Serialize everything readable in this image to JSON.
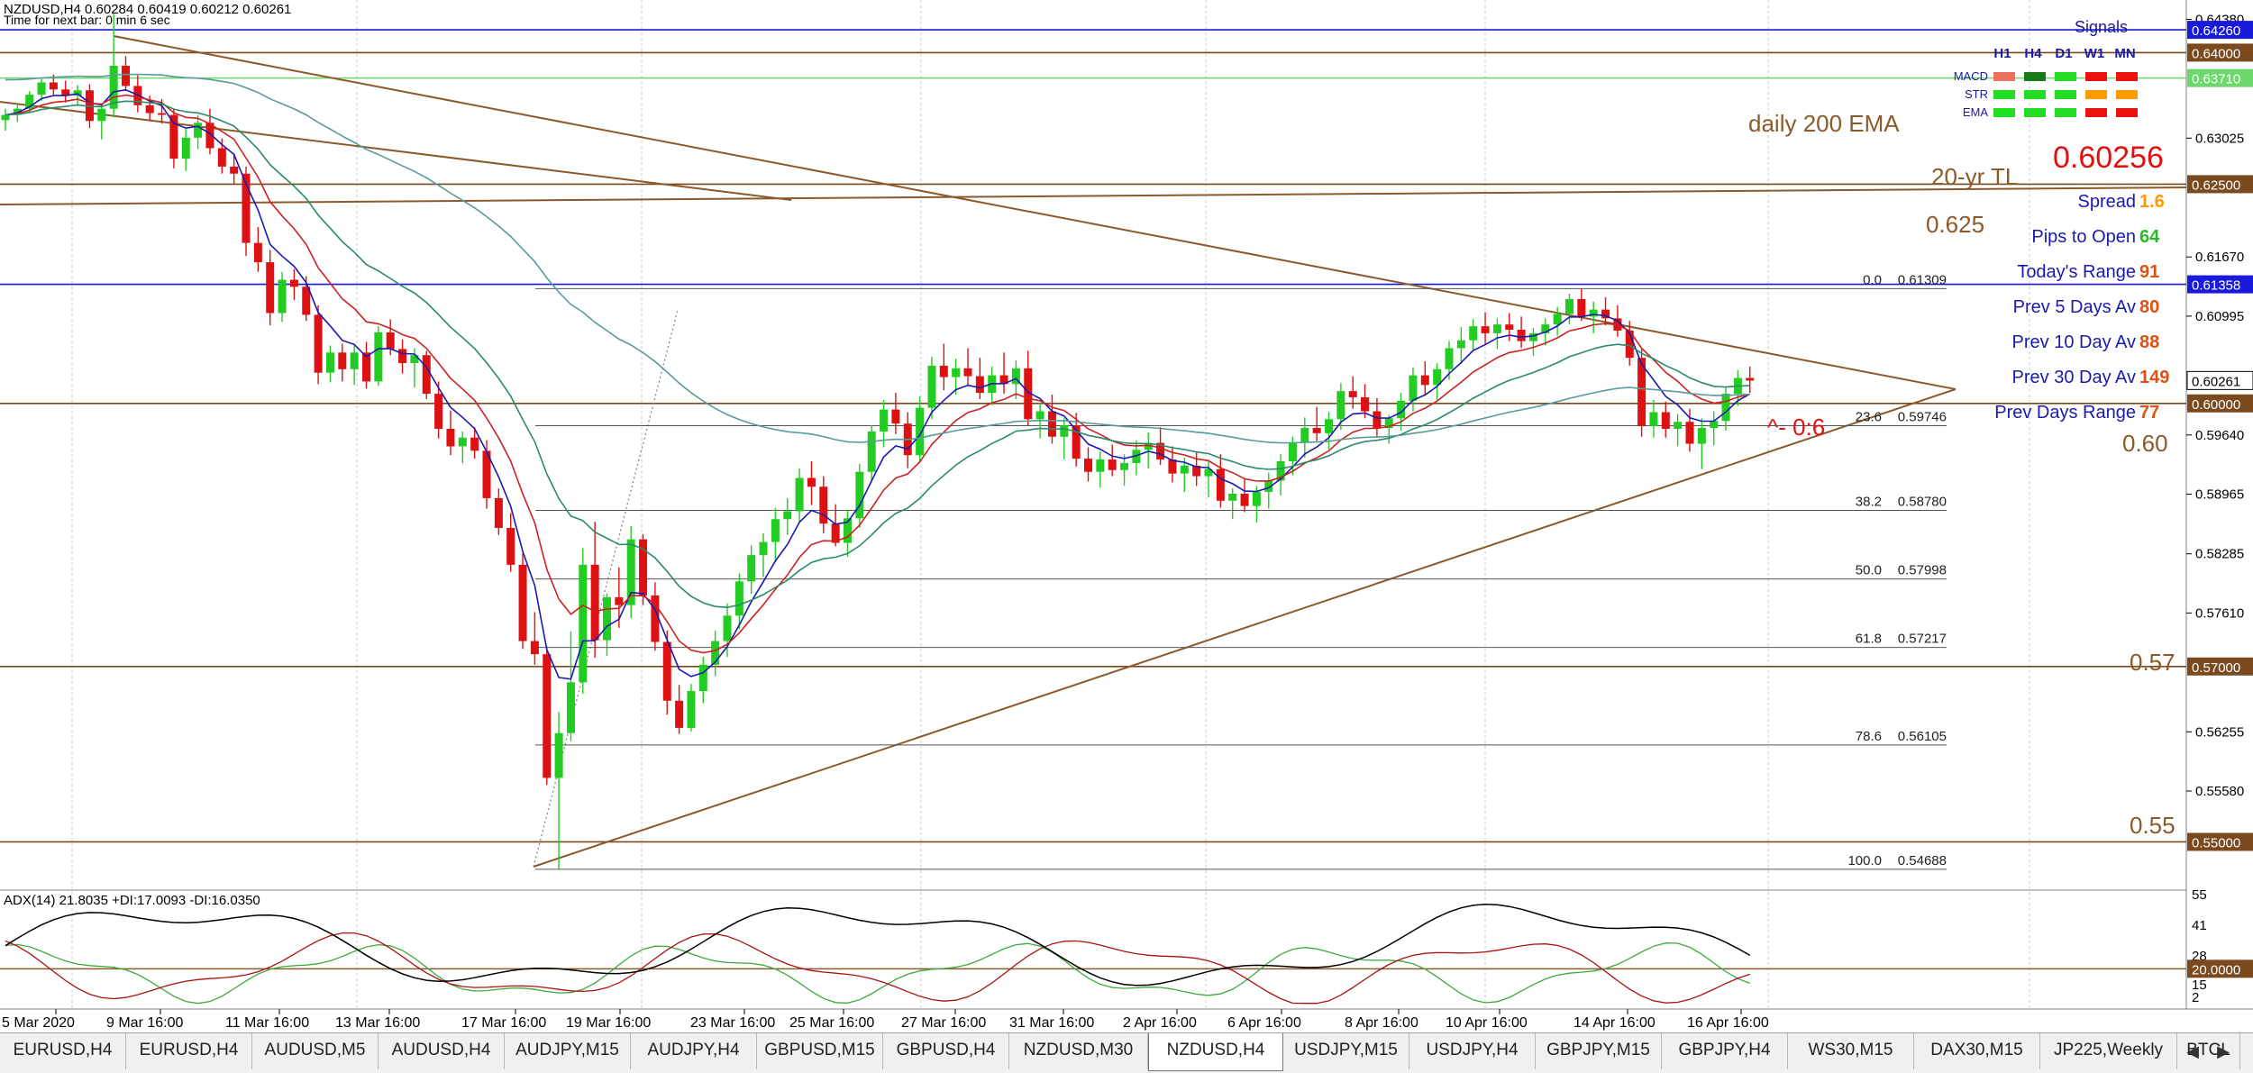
{
  "header": {
    "symbol_line": "NZDUSD,H4  0.60284 0.60419 0.60212 0.60261",
    "timer_line": "Time for next bar: 0 min 6 sec"
  },
  "price_axis": {
    "ticks": [
      "0.64380",
      "0.63025",
      "0.61670",
      "0.60995",
      "0.59640",
      "0.58965",
      "0.58285",
      "0.57610",
      "0.56255",
      "0.55580"
    ],
    "labels": [
      {
        "text": "0.64260",
        "bg": "#1a1adc",
        "fg": "#ffffff",
        "price": 0.6426
      },
      {
        "text": "0.64000",
        "bg": "#7a4a1e",
        "fg": "#ffffff",
        "price": 0.64
      },
      {
        "text": "0.63710",
        "bg": "#6cd86c",
        "fg": "#ffffff",
        "price": 0.6371
      },
      {
        "text": "0.62500",
        "bg": "#7a4a1e",
        "fg": "#ffffff",
        "price": 0.625
      },
      {
        "text": "0.61358",
        "bg": "#1a1adc",
        "fg": "#ffffff",
        "price": 0.61358
      },
      {
        "text": "0.60261",
        "bg": "#ffffff",
        "fg": "#000000",
        "price": 0.60261
      },
      {
        "text": "0.60000",
        "bg": "#7a4a1e",
        "fg": "#ffffff",
        "price": 0.6
      },
      {
        "text": "0.57000",
        "bg": "#7a4a1e",
        "fg": "#ffffff",
        "price": 0.57
      },
      {
        "text": "0.55000",
        "bg": "#7a4a1e",
        "fg": "#ffffff",
        "price": 0.55
      }
    ]
  },
  "time_axis": [
    "5 Mar 2020",
    "9 Mar 16:00",
    "11 Mar 16:00",
    "13 Mar 16:00",
    "17 Mar 16:00",
    "19 Mar 16:00",
    "23 Mar 16:00",
    "25 Mar 16:00",
    "27 Mar 16:00",
    "31 Mar 16:00",
    "2 Apr 16:00",
    "6 Apr 16:00",
    "8 Apr 16:00",
    "10 Apr 16:00",
    "14 Apr 16:00",
    "16 Apr 16:00"
  ],
  "annotations": {
    "ema200": "daily 200 EMA",
    "tl20": "20-yr TL",
    "level_0625": "0.625",
    "level_060": "0.60",
    "level_057": "0.57",
    "level_055": "0.55",
    "bid": "0.60256",
    "pips_note": "^- 0:6"
  },
  "fib_levels": [
    {
      "label": "0.0",
      "price": "0.61309"
    },
    {
      "label": "23.6",
      "price": "0.59746"
    },
    {
      "label": "38.2",
      "price": "0.58780"
    },
    {
      "label": "50.0",
      "price": "0.57998"
    },
    {
      "label": "61.8",
      "price": "0.57217"
    },
    {
      "label": "78.6",
      "price": "0.56105"
    },
    {
      "label": "100.0",
      "price": "0.54688"
    }
  ],
  "signals": {
    "title": "Signals",
    "columns": [
      "H1",
      "H4",
      "D1",
      "W1",
      "MN"
    ],
    "rows": [
      {
        "name": "MACD",
        "colors": [
          "#f07060",
          "#1a7a1a",
          "#22dd22",
          "#ee1111",
          "#ee1111"
        ]
      },
      {
        "name": "STR",
        "colors": [
          "#22dd22",
          "#22dd22",
          "#22dd22",
          "#ff9900",
          "#ff9900"
        ]
      },
      {
        "name": "EMA",
        "colors": [
          "#22dd22",
          "#22dd22",
          "#22dd22",
          "#ee1111",
          "#ee1111"
        ]
      }
    ]
  },
  "stats": [
    {
      "label": "Spread",
      "value": "1.6",
      "value_color": "#ff9900"
    },
    {
      "label": "Pips to Open",
      "value": "64",
      "value_color": "#22bb22"
    },
    {
      "label": "Today's Range",
      "value": "91",
      "value_color": "#e05010"
    },
    {
      "label": "Prev 5 Days Av",
      "value": "80",
      "value_color": "#e05010"
    },
    {
      "label": "Prev 10 Day Av",
      "value": "88",
      "value_color": "#e05010"
    },
    {
      "label": "Prev 30 Day Av",
      "value": "149",
      "value_color": "#e05010"
    },
    {
      "label": "Prev Days Range",
      "value": "77",
      "value_color": "#e05010"
    }
  ],
  "adx": {
    "label": "ADX(14) 21.8035 +DI:17.0093 -DI:16.0350",
    "ticks": [
      "55",
      "41",
      "28",
      "15",
      "2"
    ],
    "level_label": "20.0000"
  },
  "tabs": [
    "EURUSD,H4",
    "EURUSD,H4",
    "AUDUSD,M5",
    "AUDUSD,H4",
    "AUDJPY,M15",
    "AUDJPY,H4",
    "GBPUSD,M15",
    "GBPUSD,H4",
    "NZDUSD,M30",
    "NZDUSD,H4",
    "USDJPY,M15",
    "USDJPY,H4",
    "GBPJPY,M15",
    "GBPJPY,H4",
    "WS30,M15",
    "DAX30,M15",
    "JP225,Weekly",
    "BTCL"
  ],
  "active_tab": 9,
  "chart_data": {
    "type": "candlestick",
    "symbol": "NZDUSD",
    "timeframe": "H4",
    "ylim": [
      0.5445,
      0.646
    ],
    "candles": [
      [
        0.6323,
        0.6336,
        0.6311,
        0.6329
      ],
      [
        0.6329,
        0.6342,
        0.6321,
        0.6336
      ],
      [
        0.6336,
        0.6356,
        0.6331,
        0.6352
      ],
      [
        0.6352,
        0.637,
        0.6345,
        0.6366
      ],
      [
        0.6366,
        0.6375,
        0.6352,
        0.6358
      ],
      [
        0.6358,
        0.6368,
        0.6343,
        0.6351
      ],
      [
        0.6351,
        0.6363,
        0.6339,
        0.6357
      ],
      [
        0.6357,
        0.6364,
        0.6314,
        0.6322
      ],
      [
        0.6322,
        0.6342,
        0.6301,
        0.6336
      ],
      [
        0.6336,
        0.6444,
        0.6326,
        0.6385
      ],
      [
        0.6385,
        0.6396,
        0.6356,
        0.6362
      ],
      [
        0.6362,
        0.6374,
        0.6332,
        0.634
      ],
      [
        0.634,
        0.6351,
        0.6323,
        0.6331
      ],
      [
        0.6331,
        0.6347,
        0.6319,
        0.6329
      ],
      [
        0.6329,
        0.6336,
        0.6268,
        0.6279
      ],
      [
        0.6279,
        0.6313,
        0.6265,
        0.6303
      ],
      [
        0.6303,
        0.6329,
        0.629,
        0.632
      ],
      [
        0.632,
        0.6336,
        0.6284,
        0.6291
      ],
      [
        0.6291,
        0.6302,
        0.6262,
        0.627
      ],
      [
        0.627,
        0.6285,
        0.625,
        0.6262
      ],
      [
        0.6262,
        0.627,
        0.6168,
        0.6183
      ],
      [
        0.6183,
        0.6201,
        0.615,
        0.6161
      ],
      [
        0.6161,
        0.6175,
        0.6089,
        0.6103
      ],
      [
        0.6103,
        0.615,
        0.6093,
        0.6141
      ],
      [
        0.6141,
        0.6153,
        0.6118,
        0.6133
      ],
      [
        0.6133,
        0.6145,
        0.6094,
        0.6101
      ],
      [
        0.6101,
        0.6112,
        0.6022,
        0.6035
      ],
      [
        0.6035,
        0.6066,
        0.6024,
        0.6058
      ],
      [
        0.6058,
        0.6068,
        0.6025,
        0.6039
      ],
      [
        0.6039,
        0.6068,
        0.6021,
        0.6058
      ],
      [
        0.6058,
        0.607,
        0.6017,
        0.6025
      ],
      [
        0.6025,
        0.6088,
        0.602,
        0.6081
      ],
      [
        0.6081,
        0.6096,
        0.6055,
        0.6062
      ],
      [
        0.6062,
        0.6073,
        0.6034,
        0.6046
      ],
      [
        0.6046,
        0.6063,
        0.6018,
        0.6055
      ],
      [
        0.6055,
        0.606,
        0.6005,
        0.6011
      ],
      [
        0.6011,
        0.6025,
        0.596,
        0.5971
      ],
      [
        0.5971,
        0.5992,
        0.5941,
        0.5951
      ],
      [
        0.5951,
        0.5968,
        0.5932,
        0.5961
      ],
      [
        0.5961,
        0.5973,
        0.5937,
        0.5946
      ],
      [
        0.5946,
        0.5958,
        0.588,
        0.5892
      ],
      [
        0.5892,
        0.5903,
        0.585,
        0.5858
      ],
      [
        0.5858,
        0.5875,
        0.5808,
        0.5816
      ],
      [
        0.5816,
        0.5829,
        0.572,
        0.5729
      ],
      [
        0.5729,
        0.5762,
        0.5702,
        0.5714
      ],
      [
        0.5714,
        0.5723,
        0.5565,
        0.5573
      ],
      [
        0.5573,
        0.5648,
        0.5469,
        0.5624
      ],
      [
        0.5624,
        0.574,
        0.5615,
        0.5682
      ],
      [
        0.5682,
        0.5835,
        0.5669,
        0.5816
      ],
      [
        0.5816,
        0.5865,
        0.571,
        0.573
      ],
      [
        0.573,
        0.5783,
        0.5712,
        0.5779
      ],
      [
        0.5779,
        0.5813,
        0.5744,
        0.577
      ],
      [
        0.577,
        0.586,
        0.5755,
        0.5845
      ],
      [
        0.5845,
        0.5851,
        0.577,
        0.5781
      ],
      [
        0.5781,
        0.5796,
        0.5718,
        0.5728
      ],
      [
        0.5728,
        0.5741,
        0.5645,
        0.5661
      ],
      [
        0.5661,
        0.5679,
        0.5623,
        0.563
      ],
      [
        0.563,
        0.568,
        0.5626,
        0.5672
      ],
      [
        0.5672,
        0.5711,
        0.5658,
        0.5702
      ],
      [
        0.5702,
        0.5741,
        0.5689,
        0.5729
      ],
      [
        0.5729,
        0.5772,
        0.5711,
        0.5758
      ],
      [
        0.5758,
        0.5806,
        0.5743,
        0.5797
      ],
      [
        0.5797,
        0.5838,
        0.5783,
        0.5827
      ],
      [
        0.5827,
        0.5852,
        0.5802,
        0.5842
      ],
      [
        0.5842,
        0.5881,
        0.5819,
        0.5868
      ],
      [
        0.5868,
        0.5892,
        0.585,
        0.5877
      ],
      [
        0.5877,
        0.5926,
        0.5864,
        0.5915
      ],
      [
        0.5915,
        0.5934,
        0.5884,
        0.5905
      ],
      [
        0.5905,
        0.5917,
        0.5852,
        0.5863
      ],
      [
        0.5863,
        0.5885,
        0.5837,
        0.5841
      ],
      [
        0.5841,
        0.5878,
        0.5825,
        0.5869
      ],
      [
        0.5869,
        0.5931,
        0.5858,
        0.5922
      ],
      [
        0.5922,
        0.5975,
        0.591,
        0.5968
      ],
      [
        0.5968,
        0.6004,
        0.595,
        0.5993
      ],
      [
        0.5993,
        0.6012,
        0.5965,
        0.5977
      ],
      [
        0.5977,
        0.599,
        0.5926,
        0.5941
      ],
      [
        0.5941,
        0.6008,
        0.5932,
        0.5995
      ],
      [
        0.5995,
        0.6053,
        0.5982,
        0.6043
      ],
      [
        0.6043,
        0.6068,
        0.6015,
        0.603
      ],
      [
        0.603,
        0.6051,
        0.601,
        0.604
      ],
      [
        0.604,
        0.6063,
        0.602,
        0.6031
      ],
      [
        0.6031,
        0.6052,
        0.6005,
        0.6012
      ],
      [
        0.6012,
        0.6042,
        0.5998,
        0.6032
      ],
      [
        0.6032,
        0.6058,
        0.6011,
        0.6022
      ],
      [
        0.6022,
        0.6049,
        0.6005,
        0.604
      ],
      [
        0.604,
        0.606,
        0.5975,
        0.5982
      ],
      [
        0.5982,
        0.6001,
        0.596,
        0.5991
      ],
      [
        0.5991,
        0.601,
        0.5954,
        0.5962
      ],
      [
        0.5962,
        0.5983,
        0.5936,
        0.5975
      ],
      [
        0.5975,
        0.5989,
        0.5928,
        0.5937
      ],
      [
        0.5937,
        0.595,
        0.5911,
        0.5922
      ],
      [
        0.5922,
        0.5945,
        0.5904,
        0.5936
      ],
      [
        0.5936,
        0.5953,
        0.5917,
        0.5924
      ],
      [
        0.5924,
        0.5942,
        0.5906,
        0.5932
      ],
      [
        0.5932,
        0.5958,
        0.5918,
        0.5947
      ],
      [
        0.5947,
        0.5967,
        0.5926,
        0.5955
      ],
      [
        0.5955,
        0.5973,
        0.593,
        0.5936
      ],
      [
        0.5936,
        0.5951,
        0.591,
        0.592
      ],
      [
        0.592,
        0.5938,
        0.5899,
        0.5929
      ],
      [
        0.5929,
        0.5944,
        0.5906,
        0.5917
      ],
      [
        0.5917,
        0.5935,
        0.5893,
        0.5925
      ],
      [
        0.5925,
        0.5942,
        0.5881,
        0.5889
      ],
      [
        0.5889,
        0.5903,
        0.5868,
        0.5897
      ],
      [
        0.5897,
        0.5915,
        0.5876,
        0.5883
      ],
      [
        0.5883,
        0.5906,
        0.5864,
        0.5899
      ],
      [
        0.5899,
        0.5921,
        0.588,
        0.5912
      ],
      [
        0.5912,
        0.5942,
        0.5895,
        0.5934
      ],
      [
        0.5934,
        0.5962,
        0.5918,
        0.5955
      ],
      [
        0.5955,
        0.5984,
        0.5938,
        0.5972
      ],
      [
        0.5972,
        0.5996,
        0.5957,
        0.5966
      ],
      [
        0.5966,
        0.599,
        0.5948,
        0.5982
      ],
      [
        0.5982,
        0.6023,
        0.597,
        0.6014
      ],
      [
        0.6014,
        0.6031,
        0.5994,
        0.6007
      ],
      [
        0.6007,
        0.6022,
        0.5983,
        0.5991
      ],
      [
        0.5991,
        0.6006,
        0.5962,
        0.5972
      ],
      [
        0.5972,
        0.5987,
        0.5954,
        0.5983
      ],
      [
        0.5983,
        0.6012,
        0.5969,
        0.6003
      ],
      [
        0.6003,
        0.6041,
        0.5991,
        0.6032
      ],
      [
        0.6032,
        0.6048,
        0.6009,
        0.6021
      ],
      [
        0.6021,
        0.6046,
        0.6004,
        0.6039
      ],
      [
        0.6039,
        0.6071,
        0.6027,
        0.6063
      ],
      [
        0.6063,
        0.6087,
        0.6045,
        0.6072
      ],
      [
        0.6072,
        0.6096,
        0.6061,
        0.6088
      ],
      [
        0.6088,
        0.6104,
        0.6068,
        0.608
      ],
      [
        0.608,
        0.6097,
        0.6062,
        0.609
      ],
      [
        0.609,
        0.6103,
        0.6071,
        0.6084
      ],
      [
        0.6084,
        0.6099,
        0.6063,
        0.6071
      ],
      [
        0.6071,
        0.6086,
        0.6054,
        0.608
      ],
      [
        0.608,
        0.6097,
        0.6066,
        0.609
      ],
      [
        0.609,
        0.611,
        0.6077,
        0.6102
      ],
      [
        0.6102,
        0.6125,
        0.609,
        0.6119
      ],
      [
        0.6119,
        0.6131,
        0.6094,
        0.6099
      ],
      [
        0.6099,
        0.6116,
        0.608,
        0.6107
      ],
      [
        0.6107,
        0.6121,
        0.6089,
        0.6097
      ],
      [
        0.6097,
        0.6112,
        0.6076,
        0.6083
      ],
      [
        0.6083,
        0.6094,
        0.6043,
        0.6052
      ],
      [
        0.6052,
        0.6062,
        0.5962,
        0.5974
      ],
      [
        0.5974,
        0.6004,
        0.5961,
        0.599
      ],
      [
        0.599,
        0.6002,
        0.5961,
        0.5971
      ],
      [
        0.5971,
        0.5988,
        0.5951,
        0.5979
      ],
      [
        0.5979,
        0.5994,
        0.5945,
        0.5954
      ],
      [
        0.5954,
        0.5983,
        0.5925,
        0.5972
      ],
      [
        0.5972,
        0.5991,
        0.5952,
        0.598
      ],
      [
        0.598,
        0.6019,
        0.5969,
        0.6011
      ],
      [
        0.6011,
        0.6038,
        0.5997,
        0.6029
      ],
      [
        0.6029,
        0.6042,
        0.6012,
        0.6026
      ]
    ],
    "overlay_lines": [
      {
        "name": "daily 200 EMA",
        "color": "#4a8a8a"
      },
      {
        "name": "20-yr TL",
        "color": "#8b5a2b"
      }
    ],
    "adx_series": [
      {
        "name": "ADX",
        "color": "#000000"
      },
      {
        "name": "+DI",
        "color": "#3caa3c"
      },
      {
        "name": "-DI",
        "color": "#aa1111"
      }
    ],
    "adx_range": [
      0,
      60
    ]
  }
}
